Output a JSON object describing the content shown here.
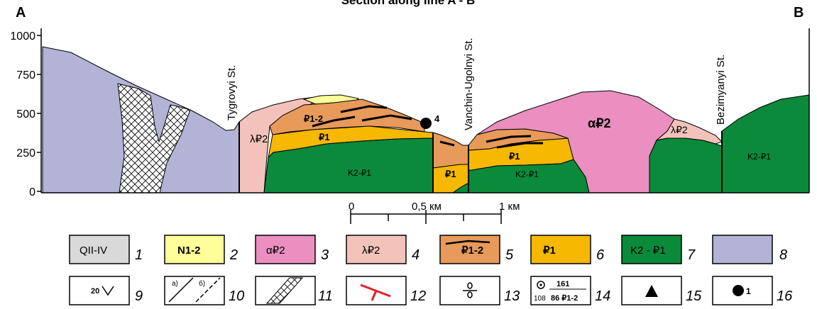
{
  "title": "Section along line A - B",
  "ends": {
    "left": "A",
    "right": "B"
  },
  "y_axis_ticks": [
    "1000",
    "750",
    "500",
    "250",
    "0"
  ],
  "streams": {
    "tygrovyi": "Tygrovyi St.",
    "vanchin": "Vanchin-Ugolnyi St.",
    "bezimyanyi": "Bezimyanyi St."
  },
  "point_label": "4",
  "section_labels": {
    "p12": "₽1-2",
    "p1_a": "₽1",
    "p1_b": "₽1",
    "p1_c": "₽1",
    "k2p1_a": "K2-₽1",
    "k2p1_b": "K2-₽1",
    "k2p1_c": "K2-₽1",
    "lambda_a": "λ₽2",
    "lambda_b": "λ₽2",
    "alpha": "α₽2"
  },
  "scale_bar": {
    "ticks": [
      "0",
      "0,5 км",
      "1 км"
    ]
  },
  "legend": [
    {
      "num": "1",
      "text": "QII-IV",
      "fill": "#d9d9d9"
    },
    {
      "num": "2",
      "text": "N1-2",
      "fill": "#ffff99"
    },
    {
      "num": "3",
      "text": "α₽2",
      "fill": "#ea8fbf"
    },
    {
      "num": "4",
      "text": "λ₽2",
      "fill": "#f3c3bb"
    },
    {
      "num": "5",
      "text": "₽1-2",
      "fill": "#e79a5a"
    },
    {
      "num": "6",
      "text": "₽1",
      "fill": "#f6b800"
    },
    {
      "num": "7",
      "text": "K2 - ₽1",
      "fill": "#0a8a3a"
    },
    {
      "num": "8",
      "text": "",
      "fill": "#b3b3d6"
    },
    {
      "num": "9",
      "text": "20",
      "fill": "#ffffff"
    },
    {
      "num": "10",
      "text": "а)   б)",
      "fill": "#ffffff"
    },
    {
      "num": "11",
      "text": "",
      "fill": "#ffffff"
    },
    {
      "num": "12",
      "text": "",
      "fill": "#ffffff"
    },
    {
      "num": "13",
      "text": "",
      "fill": "#ffffff"
    },
    {
      "num": "14",
      "text": "161 / 108 86 ₽1-2",
      "fill": "#ffffff"
    },
    {
      "num": "15",
      "text": "",
      "fill": "#ffffff"
    },
    {
      "num": "16",
      "text": "1",
      "fill": "#ffffff"
    }
  ],
  "legend_parts": {
    "l14_top": "161",
    "l14_left": "108",
    "l14_bottom": "86 ₽1-2",
    "l9": "20",
    "l10a": "а)",
    "l10b": "б)",
    "l16": "1"
  },
  "colors": {
    "lavender": "#b3b3d6",
    "pink": "#ea8fbf",
    "salmon": "#f3c3bb",
    "orange": "#e79a5a",
    "yellow": "#f6b800",
    "green": "#0a8a3a",
    "paleyellow": "#ffff99",
    "grey": "#d9d9d9",
    "red": "#e0202a"
  }
}
